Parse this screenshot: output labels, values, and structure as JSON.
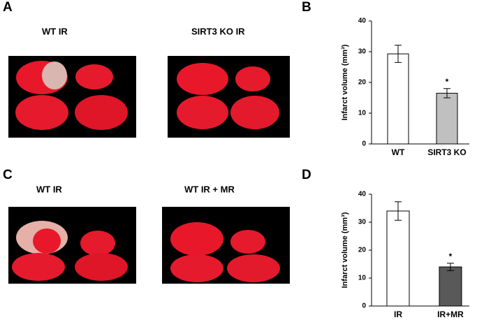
{
  "panels": [
    "A",
    "B",
    "C",
    "D"
  ],
  "images": [
    {
      "caption": "WT IR"
    },
    {
      "caption": "SIRT3 KO IR"
    },
    {
      "caption": "WT IR"
    },
    {
      "caption": "WT IR + MR"
    }
  ],
  "chart_data": [
    {
      "type": "bar",
      "y_label": "Infarct volume (mm³)",
      "categories": [
        "WT",
        "SIRT3 KO"
      ],
      "values": [
        29.3,
        16.5
      ],
      "errors": [
        2.8,
        1.5
      ],
      "colors": [
        "#ffffff",
        "#c0c0c0"
      ],
      "ylim": [
        0,
        40
      ],
      "yticks": [
        0,
        10,
        20,
        30,
        40
      ],
      "annotations": [
        {
          "text": "*",
          "category": "SIRT3 KO"
        }
      ]
    },
    {
      "type": "bar",
      "y_label": "Infarct volume (mm³)",
      "categories": [
        "IR",
        "IR+MR"
      ],
      "values": [
        34,
        14
      ],
      "errors": [
        3.3,
        1.3
      ],
      "colors": [
        "#ffffff",
        "#595959"
      ],
      "ylim": [
        0,
        40
      ],
      "yticks": [
        0,
        10,
        20,
        30,
        40
      ],
      "annotations": [
        {
          "text": "*",
          "category": "IR+MR"
        }
      ]
    }
  ]
}
